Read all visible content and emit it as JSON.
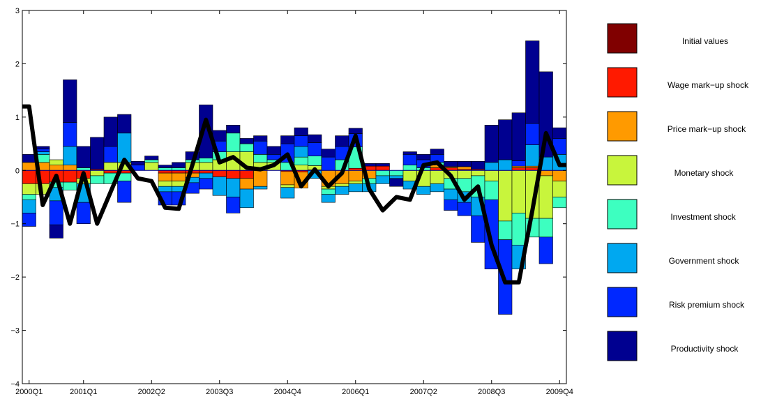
{
  "chart_data": {
    "type": "bar",
    "subtype": "stacked-bar-with-line",
    "title": "",
    "xlabel": "",
    "ylabel": "",
    "ylim": [
      -4,
      3
    ],
    "yticks": [
      -4,
      -3,
      -2,
      -1,
      0,
      1,
      2,
      3
    ],
    "ytick_labels": [
      "−4",
      "−3",
      "−2",
      "−1",
      "0",
      "1",
      "2",
      "3"
    ],
    "xtick_labels": [
      "2000Q1",
      "2001Q1",
      "2002Q2",
      "2003Q3",
      "2004Q4",
      "2006Q1",
      "2007Q2",
      "2008Q3",
      "2009Q4"
    ],
    "xtick_index": [
      0,
      4,
      9,
      14,
      19,
      24,
      29,
      34,
      39
    ],
    "n_periods": 40,
    "grid": false,
    "legend_position": "right",
    "series": [
      {
        "name": "Initial values",
        "color": "#800000",
        "values": [
          0,
          0,
          0,
          0,
          0,
          0,
          0,
          0,
          0,
          0,
          0,
          0,
          0,
          0,
          0,
          0,
          0,
          0,
          0,
          0,
          0,
          0,
          0,
          0,
          0,
          0,
          0,
          0,
          0,
          0,
          0,
          0,
          0,
          0,
          0,
          0,
          0,
          0,
          0,
          0
        ]
      },
      {
        "name": "Wage mark−up shock",
        "color": "#ff1a00",
        "values": [
          -0.25,
          -0.25,
          -0.22,
          -0.22,
          -0.15,
          0.02,
          -0.05,
          -0.05,
          0,
          0,
          -0.05,
          -0.05,
          -0.05,
          -0.05,
          -0.12,
          -0.15,
          -0.15,
          0,
          0,
          -0.02,
          -0.03,
          0.01,
          0,
          0,
          0.04,
          0.08,
          0.08,
          0,
          0,
          0,
          0.05,
          0.05,
          0.02,
          0.02,
          0,
          0,
          0.05,
          0.05,
          0,
          0
        ]
      },
      {
        "name": "Price mark−up shock",
        "color": "#ff9a00",
        "values": [
          0.15,
          0.15,
          0.1,
          0.1,
          0,
          0,
          0,
          0,
          0,
          0,
          -0.15,
          -0.15,
          -0.08,
          0,
          0,
          0,
          -0.2,
          -0.3,
          0,
          -0.25,
          -0.3,
          0,
          -0.3,
          -0.25,
          -0.2,
          -0.15,
          0,
          0,
          0,
          0,
          0.05,
          0.02,
          0.05,
          0,
          0,
          0,
          0.03,
          0.03,
          -0.1,
          -0.2
        ]
      },
      {
        "name": "Monetary shock",
        "color": "#c8f53c",
        "values": [
          -0.2,
          -0.2,
          0.1,
          0,
          -0.1,
          -0.1,
          0.15,
          0.15,
          0,
          0.15,
          -0.1,
          -0.1,
          0.15,
          0.15,
          0.2,
          0.35,
          0.35,
          0.15,
          0.15,
          -0.05,
          0.1,
          0.08,
          -0.05,
          -0.05,
          -0.05,
          0,
          0,
          0,
          -0.2,
          -0.3,
          -0.25,
          -0.15,
          -0.15,
          -0.1,
          -0.2,
          -0.95,
          -0.8,
          -0.9,
          -0.8,
          -0.3
        ]
      },
      {
        "name": "Investment shock",
        "color": "#3dffc0",
        "values": [
          -0.1,
          0.15,
          -0.1,
          -0.15,
          0.05,
          -0.15,
          -0.2,
          -0.15,
          0,
          0.05,
          0.05,
          0.05,
          0.05,
          0.08,
          0.15,
          0.35,
          0.15,
          0.15,
          0.05,
          0.15,
          0.15,
          0.18,
          -0.1,
          0.2,
          0.4,
          -0.1,
          -0.1,
          -0.1,
          0.1,
          0.05,
          0.05,
          -0.2,
          -0.25,
          -0.4,
          -0.35,
          -0.35,
          -0.6,
          -0.35,
          -0.35,
          -0.2
        ]
      },
      {
        "name": "Government shock",
        "color": "#00a8f0",
        "values": [
          -0.25,
          0.05,
          -0.25,
          0.35,
          -0.35,
          0,
          0,
          0.55,
          0,
          0,
          -0.1,
          -0.1,
          -0.1,
          -0.1,
          -0.35,
          -0.35,
          -0.35,
          -0.05,
          0,
          -0.2,
          0.2,
          -0.15,
          -0.15,
          -0.15,
          -0.15,
          -0.15,
          -0.15,
          -0.05,
          -0.15,
          -0.15,
          -0.15,
          -0.2,
          -0.2,
          -0.35,
          0.15,
          0.2,
          -0.45,
          0.4,
          0.25,
          0.3
        ]
      },
      {
        "name": "Risk premium shock",
        "color": "#0028ff",
        "values": [
          -0.25,
          0.05,
          -0.45,
          0.45,
          -0.4,
          0,
          0.3,
          -0.4,
          0.1,
          0,
          -0.25,
          -0.25,
          -0.2,
          -0.2,
          0.2,
          -0.3,
          0,
          0.25,
          0.1,
          0.35,
          0.2,
          0.25,
          0.25,
          0.25,
          0.25,
          0,
          0,
          0,
          0.2,
          0.15,
          0.15,
          -0.2,
          -0.25,
          -0.5,
          -1.3,
          -1.4,
          0.1,
          0.4,
          -0.5,
          0.3
        ]
      },
      {
        "name": "Productivity shock",
        "color": "#000090",
        "values": [
          0.15,
          0.05,
          -0.25,
          0.8,
          0.4,
          0.6,
          0.55,
          0.35,
          0.07,
          0.07,
          0.05,
          0.1,
          0.15,
          1.0,
          0.2,
          0.15,
          0.1,
          0.1,
          0.15,
          0.15,
          0.15,
          0.15,
          0.15,
          0.2,
          0.1,
          0.05,
          0.05,
          -0.15,
          0.05,
          0.1,
          0.1,
          0.1,
          0.1,
          0.15,
          0.7,
          0.75,
          0.9,
          1.55,
          1.6,
          0.2
        ]
      }
    ],
    "line": {
      "color": "#000000",
      "values": [
        1.2,
        -0.65,
        -0.1,
        -1,
        -0.05,
        -1,
        -0.4,
        0.2,
        -0.15,
        -0.2,
        -0.7,
        -0.72,
        0.1,
        0.95,
        0.15,
        0.25,
        0.05,
        0.02,
        0.1,
        0.3,
        -0.3,
        0.02,
        -0.3,
        -0.05,
        0.65,
        -0.35,
        -0.75,
        -0.5,
        -0.55,
        0.1,
        0.15,
        -0.1,
        -0.55,
        -0.3,
        -1.4,
        -2.1,
        -2.1,
        -0.75,
        0.7,
        0.1
      ]
    }
  }
}
